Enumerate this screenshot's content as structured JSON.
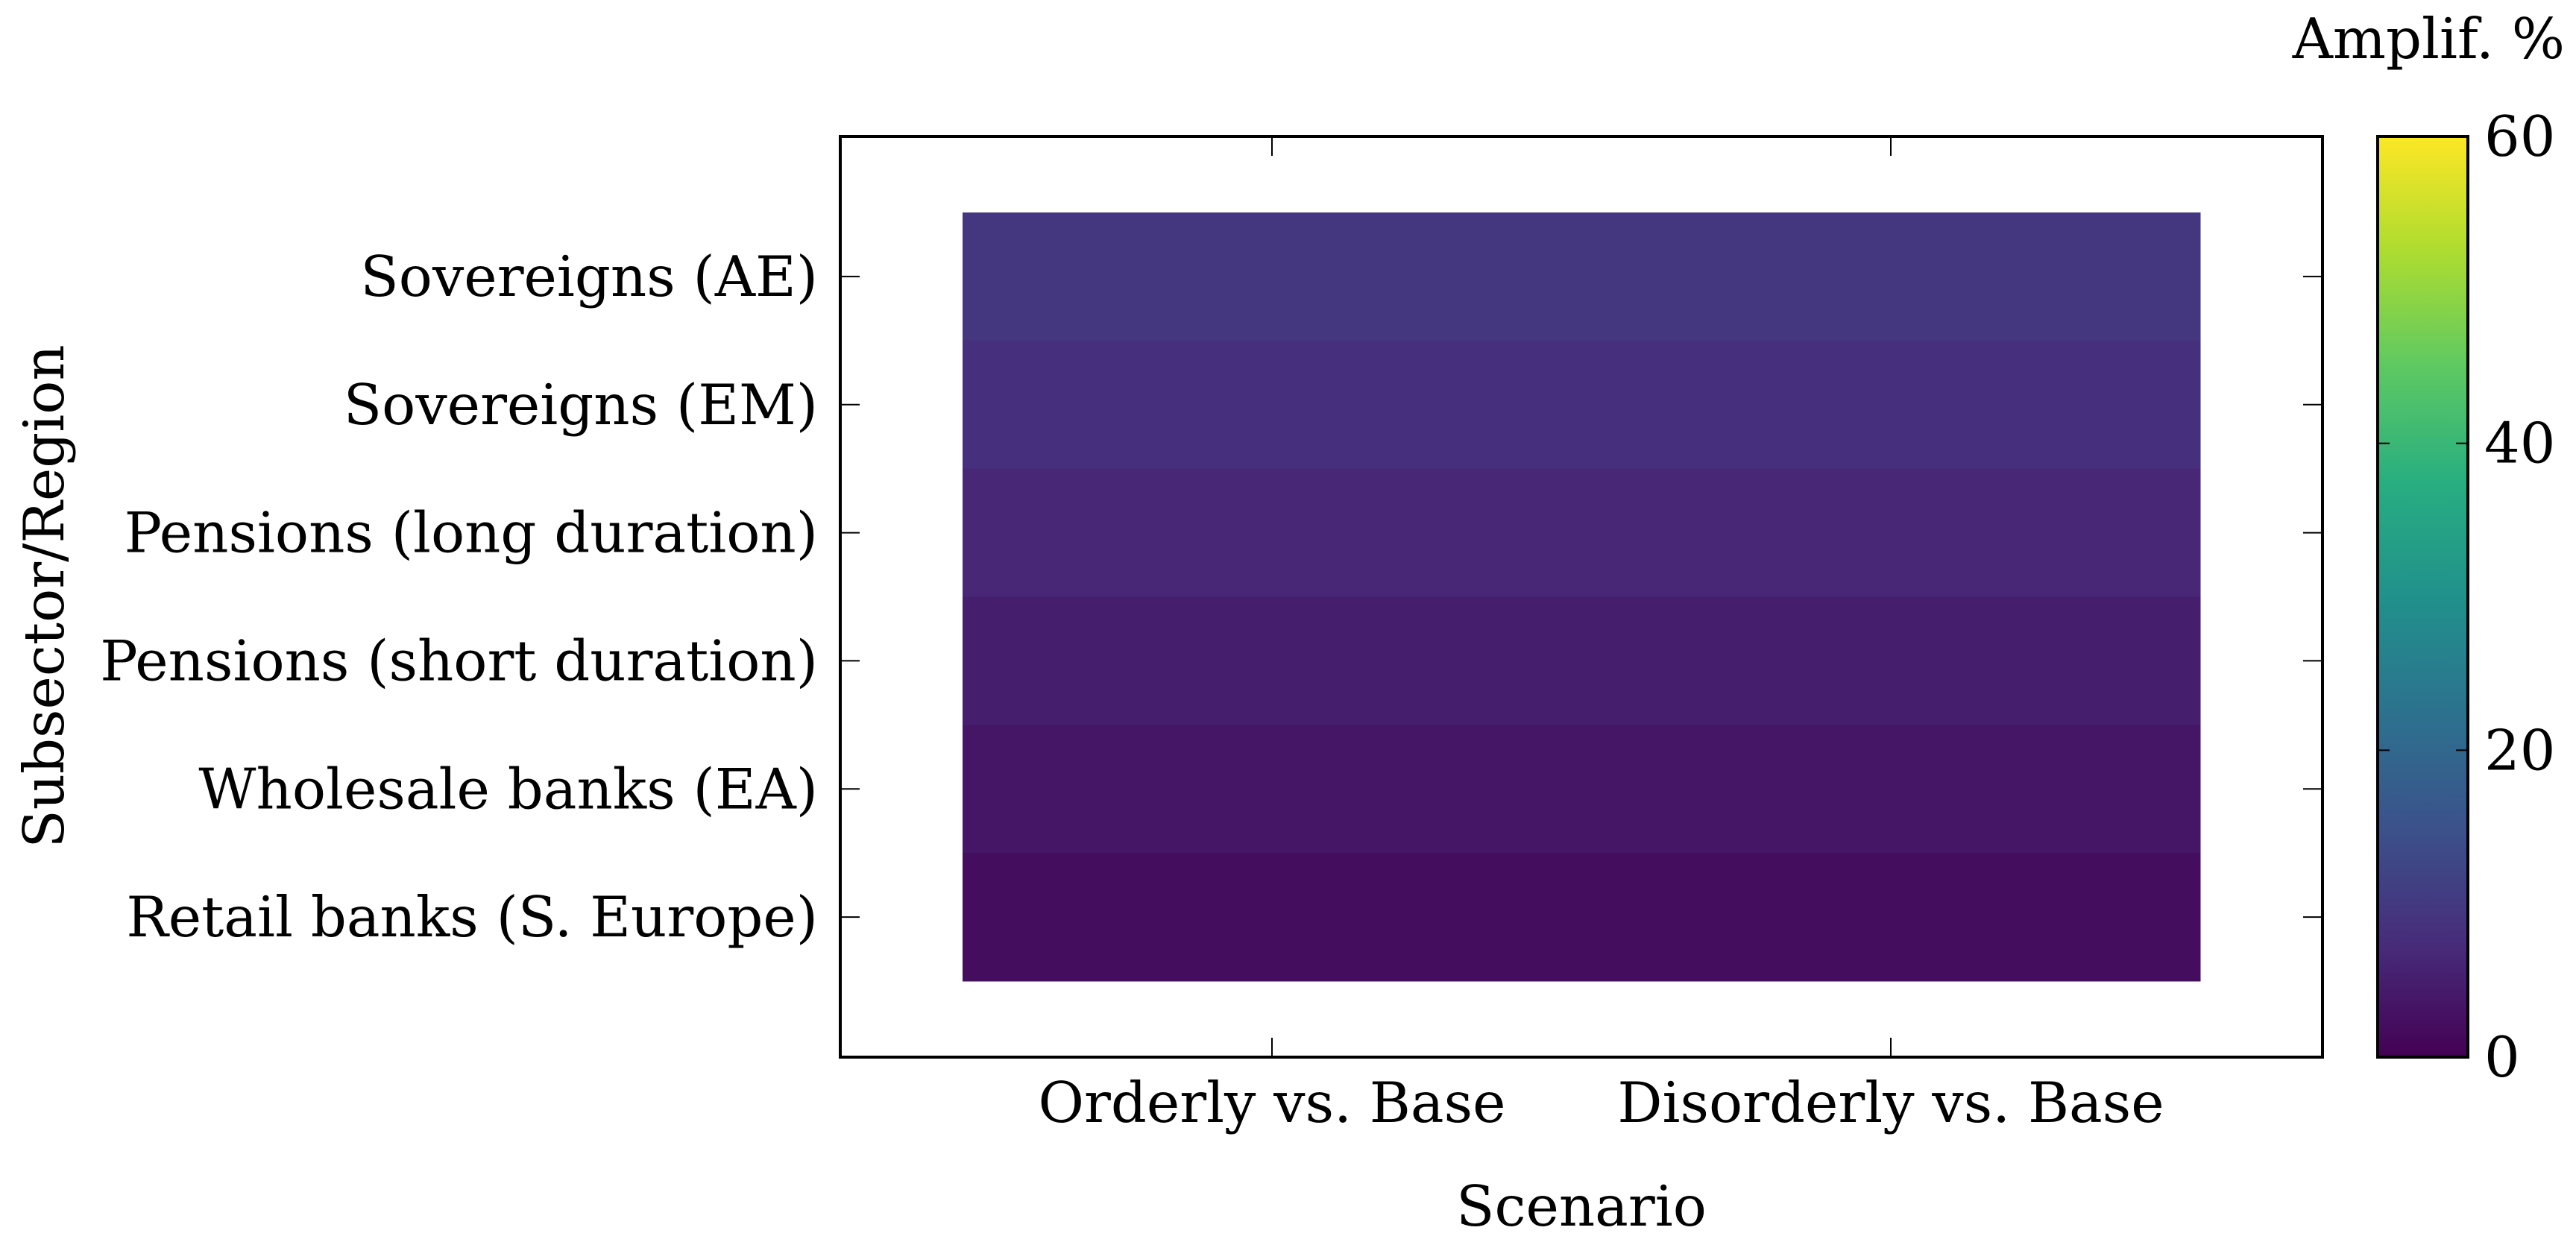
{
  "chart_data": {
    "type": "heatmap",
    "xlabel": "Scenario",
    "ylabel": "Subsector/Region",
    "x_categories": [
      "Orderly vs. Base",
      "Disorderly vs. Base"
    ],
    "y_categories": [
      "Sovereigns (AE)",
      "Sovereigns (EM)",
      "Pensions (long duration)",
      "Pensions (short duration)",
      "Wholesale banks (EA)",
      "Retail banks (S. Europe)"
    ],
    "values": [
      [
        9.5,
        9.5
      ],
      [
        8.0,
        8.0
      ],
      [
        6.5,
        6.5
      ],
      [
        5.0,
        5.0
      ],
      [
        3.5,
        3.5
      ],
      [
        2.0,
        2.0
      ]
    ],
    "colorbar": {
      "label": "Amplif. %",
      "min": 0,
      "max": 60,
      "ticks": [
        0,
        20,
        40,
        60
      ],
      "colormap": "viridis"
    }
  }
}
